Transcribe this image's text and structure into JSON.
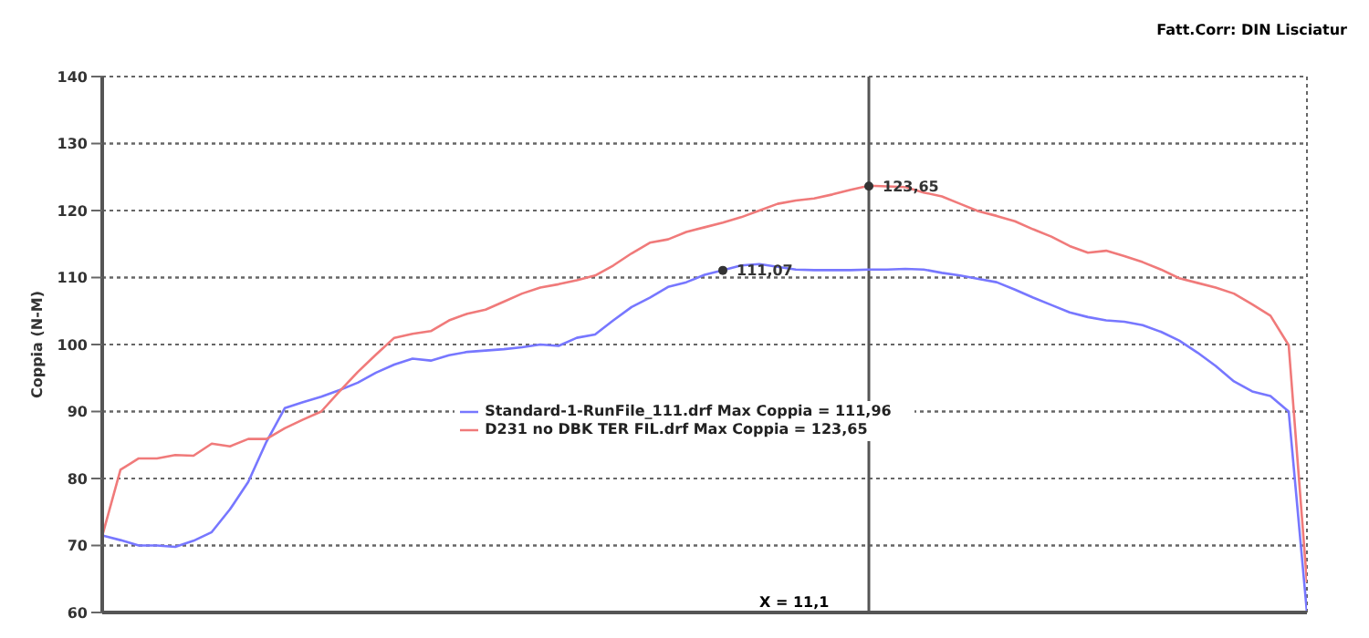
{
  "chart_data": {
    "type": "line",
    "ylabel": "Coppia (N-M)",
    "categories": [
      null,
      null,
      null,
      null,
      null,
      null,
      null,
      null,
      null,
      null,
      null,
      null,
      null,
      null,
      null,
      null,
      null,
      null,
      null,
      null,
      null,
      null,
      null,
      null,
      null,
      null,
      null,
      null,
      null,
      null,
      null,
      null,
      null,
      null,
      null,
      null,
      null,
      null,
      null,
      null,
      null,
      null,
      null,
      null,
      null,
      null,
      null,
      null,
      null,
      null,
      null,
      null,
      null,
      null,
      null,
      null,
      null,
      null,
      null,
      null,
      null,
      null,
      null,
      null,
      null,
      null,
      null
    ],
    "series": [
      {
        "name": "Standard-1-RunFile_111.drf Max Coppia = 111,96",
        "color": "#7777ff",
        "values": [
          71.5,
          70.8,
          70.0,
          70.0,
          69.8,
          70.7,
          72.0,
          75.4,
          79.5,
          85.5,
          90.5,
          91.4,
          92.2,
          93.2,
          94.3,
          95.8,
          97.0,
          97.9,
          97.6,
          98.4,
          98.9,
          99.1,
          99.3,
          99.6,
          100.0,
          99.8,
          101.0,
          101.5,
          103.6,
          105.6,
          107.0,
          108.6,
          109.3,
          110.4,
          111.1,
          111.8,
          112.0,
          111.6,
          111.2,
          111.1,
          111.1,
          111.1,
          111.2,
          111.2,
          111.3,
          111.2,
          110.7,
          110.3,
          109.8,
          109.3,
          108.2,
          107.0,
          105.9,
          104.8,
          104.1,
          103.6,
          103.4,
          102.9,
          101.9,
          100.6,
          98.8,
          96.8,
          94.5,
          93.0,
          92.3,
          90.0,
          60
        ]
      },
      {
        "name": "D231 no DBK TER FIL.drf Max Coppia = 123,65",
        "color": "#f07a7a",
        "values": [
          71.4,
          81.3,
          83.0,
          83.0,
          83.5,
          83.4,
          85.2,
          84.8,
          85.9,
          85.9,
          87.5,
          88.8,
          90.0,
          93.0,
          95.9,
          98.5,
          101.0,
          101.6,
          102.0,
          103.6,
          104.6,
          105.2,
          106.4,
          107.6,
          108.5,
          109.0,
          109.6,
          110.3,
          111.8,
          113.6,
          115.2,
          115.7,
          116.8,
          117.5,
          118.2,
          119.0,
          120.0,
          121.0,
          121.5,
          121.8,
          122.4,
          123.1,
          123.7,
          123.6,
          123.5,
          122.7,
          122.1,
          121.0,
          119.9,
          119.2,
          118.4,
          117.2,
          116.1,
          114.7,
          113.7,
          114.0,
          113.2,
          112.3,
          111.2,
          109.9,
          109.2,
          108.5,
          107.6,
          106.0,
          104.3,
          99.9,
          64.5
        ]
      }
    ],
    "ylim": [
      60,
      140
    ],
    "yticks": [
      60,
      70,
      80,
      90,
      100,
      110,
      120,
      130,
      140
    ],
    "grid": true,
    "legend": "center",
    "tick_labels": "y",
    "marker": "none",
    "line_style": "solid",
    "annotations": [
      "Fatt.Corr: DIN  Lisciatur",
      "X = 11,1",
      {
        "text": "123,65",
        "y": 123.65
      },
      {
        "text": "111,07",
        "y": 111.07
      }
    ]
  }
}
